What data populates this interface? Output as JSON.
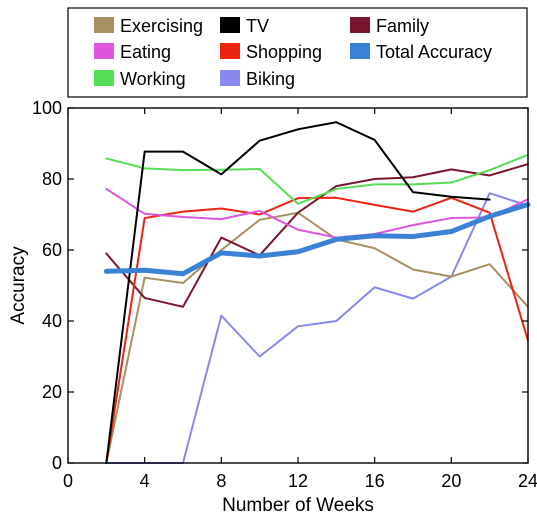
{
  "chart_data": {
    "type": "line",
    "title": "",
    "xlabel": "Number of Weeks",
    "ylabel": "Accuracy",
    "xlim": [
      0,
      24
    ],
    "ylim": [
      0,
      100
    ],
    "xticks": [
      "0",
      "4",
      "8",
      "12",
      "16",
      "20",
      "24"
    ],
    "yticks": [
      "0",
      "20",
      "40",
      "60",
      "80",
      "100"
    ],
    "grid": false,
    "legend_position": "top",
    "series": [
      {
        "name": "Exercising",
        "color": "#a89060",
        "width": 2,
        "x": [
          2,
          4,
          6,
          8,
          10,
          12,
          14,
          16,
          18,
          20,
          22,
          24
        ],
        "values": [
          0,
          52.2,
          50.7,
          60.0,
          68.5,
          70.5,
          63.0,
          60.5,
          54.5,
          52.5,
          56.0,
          44.0
        ]
      },
      {
        "name": "Eating",
        "color": "#dd55dd",
        "width": 2,
        "x": [
          2,
          4,
          6,
          8,
          10,
          12,
          14,
          16,
          18,
          20,
          22,
          24
        ],
        "values": [
          77.2,
          70.2,
          69.3,
          68.7,
          71.0,
          65.7,
          63.5,
          64.5,
          67.0,
          69.0,
          69.2,
          74.3
        ]
      },
      {
        "name": "Working",
        "color": "#55dd55",
        "width": 2,
        "x": [
          2,
          4,
          6,
          8,
          10,
          12,
          14,
          16,
          18,
          20,
          22,
          24
        ],
        "values": [
          85.8,
          83.0,
          82.5,
          82.6,
          82.8,
          73.0,
          77.2,
          78.5,
          78.5,
          79.0,
          82.5,
          86.8
        ]
      },
      {
        "name": "TV",
        "color": "#000000",
        "width": 2,
        "x": [
          2,
          4,
          6,
          8,
          10,
          12,
          14,
          16,
          18,
          20,
          22
        ],
        "values": [
          0,
          87.7,
          87.7,
          81.3,
          90.8,
          94.0,
          96.0,
          91.0,
          76.3,
          75.0,
          74.2
        ]
      },
      {
        "name": "Shopping",
        "color": "#ee2211",
        "width": 2,
        "x": [
          2,
          4,
          6,
          8,
          10,
          12,
          14,
          16,
          18,
          20,
          22,
          24
        ],
        "values": [
          0,
          69.0,
          70.8,
          71.7,
          70.0,
          74.6,
          74.7,
          72.7,
          70.8,
          74.7,
          70.5,
          34.5
        ]
      },
      {
        "name": "Biking",
        "color": "#8888ee",
        "width": 2,
        "x": [
          2,
          4,
          6,
          8,
          10,
          12,
          14,
          16,
          18,
          20,
          22,
          24
        ],
        "values": [
          0,
          0,
          0,
          41.5,
          30.0,
          38.5,
          40.0,
          49.5,
          46.3,
          52.5,
          76.0,
          72.5
        ]
      },
      {
        "name": "Family",
        "color": "#7a1530",
        "width": 2,
        "x": [
          2,
          4,
          6,
          8,
          10,
          12,
          14,
          16,
          18,
          20,
          22,
          24
        ],
        "values": [
          59.0,
          46.5,
          44.0,
          63.5,
          58.5,
          70.5,
          78.0,
          80.0,
          80.5,
          82.7,
          81.0,
          84.2
        ]
      },
      {
        "name": "Total Accuracy",
        "color": "#3a82d6",
        "width": 5,
        "x": [
          2,
          4,
          6,
          8,
          10,
          12,
          14,
          16,
          18,
          20,
          22,
          24
        ],
        "values": [
          54.0,
          54.3,
          53.3,
          59.2,
          58.3,
          59.5,
          63.0,
          64.0,
          63.8,
          65.2,
          69.5,
          72.8
        ]
      }
    ],
    "legend_order": [
      "Exercising",
      "TV",
      "Family",
      "Eating",
      "Shopping",
      "Total Accuracy",
      "Working",
      "Biking"
    ]
  }
}
